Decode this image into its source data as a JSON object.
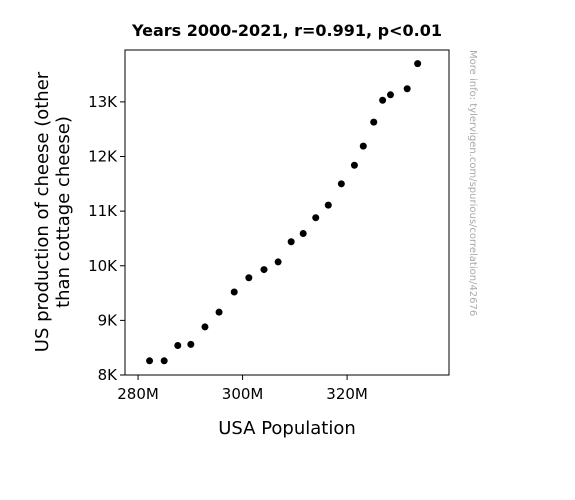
{
  "chart_data": {
    "type": "scatter",
    "title": "Years 2000-2021, r=0.991, p<0.01",
    "xlabel": "USA Population",
    "ylabel_lines": [
      "US production of cheese (other",
      "than cottage cheese)"
    ],
    "watermark": "More info: tylervigen.com/spurious/correlation/42676",
    "xlim": [
      277.5,
      339.5
    ],
    "ylim": [
      8000,
      13950
    ],
    "xticks": [
      280,
      300,
      320
    ],
    "xtick_labels": [
      "280M",
      "300M",
      "320M"
    ],
    "yticks": [
      8000,
      9000,
      10000,
      11000,
      12000,
      13000
    ],
    "ytick_labels": [
      "8K",
      "9K",
      "10K",
      "11K",
      "12K",
      "13K"
    ],
    "grid": false,
    "marker_color": "#000000",
    "points": [
      {
        "x": 282.2,
        "y": 8260
      },
      {
        "x": 285.0,
        "y": 8260
      },
      {
        "x": 287.6,
        "y": 8540
      },
      {
        "x": 290.1,
        "y": 8560
      },
      {
        "x": 292.8,
        "y": 8880
      },
      {
        "x": 295.5,
        "y": 9150
      },
      {
        "x": 298.4,
        "y": 9520
      },
      {
        "x": 301.2,
        "y": 9780
      },
      {
        "x": 304.1,
        "y": 9930
      },
      {
        "x": 306.8,
        "y": 10070
      },
      {
        "x": 309.3,
        "y": 10440
      },
      {
        "x": 311.6,
        "y": 10590
      },
      {
        "x": 314.0,
        "y": 10880
      },
      {
        "x": 316.4,
        "y": 11110
      },
      {
        "x": 318.9,
        "y": 11500
      },
      {
        "x": 321.4,
        "y": 11840
      },
      {
        "x": 323.1,
        "y": 12190
      },
      {
        "x": 325.1,
        "y": 12630
      },
      {
        "x": 326.8,
        "y": 13030
      },
      {
        "x": 328.3,
        "y": 13130
      },
      {
        "x": 331.5,
        "y": 13240
      },
      {
        "x": 333.5,
        "y": 13700
      }
    ]
  }
}
